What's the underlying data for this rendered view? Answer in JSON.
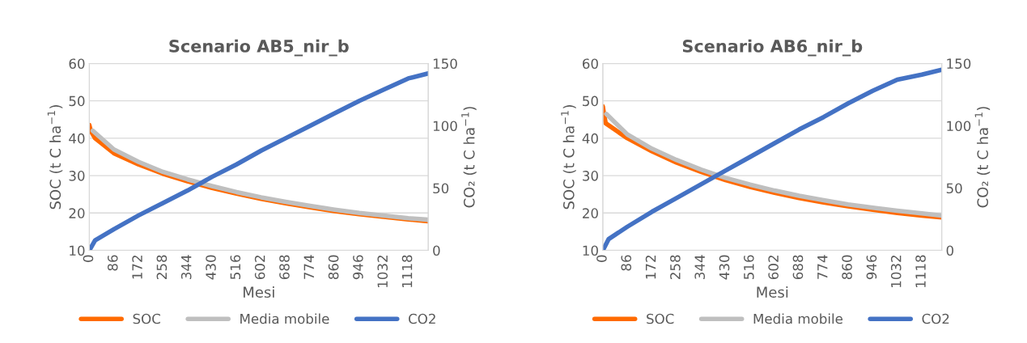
{
  "chart_data": [
    {
      "type": "line",
      "title": "Scenario AB5_nir_b",
      "xlabel": "Mesi",
      "ylabel": "SOC (t C ha$^{−1}$)",
      "y2label": "CO₂ (t C ha$^{−1}$)",
      "xlim": [
        0,
        1188
      ],
      "xticks": [
        0,
        86,
        172,
        258,
        344,
        430,
        516,
        602,
        688,
        774,
        860,
        946,
        1032,
        1118
      ],
      "ylim": [
        10,
        60
      ],
      "yticks": [
        10,
        20,
        30,
        40,
        50,
        60
      ],
      "y2lim": [
        0,
        150
      ],
      "y2ticks": [
        0,
        50,
        100,
        150
      ],
      "grid": "y",
      "legend": "bottom",
      "marker": "none",
      "line_style": "solid",
      "series": [
        {
          "name": "SOC",
          "color": "#ff6a00",
          "x": [
            0,
            5,
            20,
            86,
            172,
            258,
            344,
            430,
            516,
            602,
            688,
            774,
            860,
            946,
            1032,
            1118,
            1188
          ],
          "values": [
            43.5,
            42,
            40,
            36,
            33,
            30.5,
            28.5,
            26.7,
            25.2,
            23.8,
            22.6,
            21.5,
            20.5,
            19.7,
            19,
            18.3,
            17.8
          ]
        },
        {
          "name": "Media mobile",
          "color": "#bfbfbf",
          "x": [
            12,
            86,
            172,
            258,
            344,
            430,
            516,
            602,
            688,
            774,
            860,
            946,
            1032,
            1118,
            1188
          ],
          "values": [
            42,
            37,
            33.7,
            31,
            29,
            27.2,
            25.6,
            24.2,
            23,
            21.9,
            20.9,
            20,
            19.3,
            18.6,
            18.2
          ]
        },
        {
          "name": "CO2",
          "color": "#4472c4",
          "axis": "y2",
          "x": [
            0,
            20,
            86,
            172,
            258,
            344,
            430,
            516,
            602,
            688,
            774,
            860,
            946,
            1032,
            1118,
            1188
          ],
          "values": [
            0,
            8,
            17,
            28,
            38,
            48,
            59,
            69,
            80,
            90,
            100,
            110,
            120,
            129,
            138,
            142
          ]
        }
      ]
    },
    {
      "type": "line",
      "title": "Scenario AB6_nir_b",
      "xlabel": "Mesi",
      "ylabel": "SOC (t C ha$^{−1}$)",
      "y2label": "CO₂ (t C ha$^{−1}$)",
      "xlim": [
        0,
        1188
      ],
      "xticks": [
        0,
        86,
        172,
        258,
        344,
        430,
        516,
        602,
        688,
        774,
        860,
        946,
        1032,
        1118
      ],
      "ylim": [
        10,
        60
      ],
      "yticks": [
        10,
        20,
        30,
        40,
        50,
        60
      ],
      "y2lim": [
        0,
        150
      ],
      "y2ticks": [
        0,
        50,
        100,
        150
      ],
      "grid": "y",
      "legend": "bottom",
      "marker": "none",
      "line_style": "solid",
      "series": [
        {
          "name": "SOC",
          "color": "#ff6a00",
          "x": [
            0,
            5,
            10,
            86,
            172,
            258,
            344,
            430,
            516,
            602,
            688,
            774,
            860,
            946,
            1032,
            1118,
            1188
          ],
          "values": [
            48.5,
            46,
            44,
            40,
            36.5,
            33.5,
            31,
            28.8,
            27,
            25.4,
            24,
            22.8,
            21.8,
            20.9,
            20,
            19.3,
            18.8
          ]
        },
        {
          "name": "Media mobile",
          "color": "#bfbfbf",
          "x": [
            12,
            86,
            172,
            258,
            344,
            430,
            516,
            602,
            688,
            774,
            860,
            946,
            1032,
            1118,
            1188
          ],
          "values": [
            46.5,
            41,
            37.2,
            34.2,
            31.6,
            29.4,
            27.6,
            26,
            24.6,
            23.4,
            22.3,
            21.4,
            20.6,
            19.9,
            19.3
          ]
        },
        {
          "name": "CO2",
          "color": "#4472c4",
          "axis": "y2",
          "x": [
            0,
            20,
            86,
            172,
            258,
            344,
            430,
            516,
            602,
            688,
            774,
            860,
            946,
            1032,
            1118,
            1188
          ],
          "values": [
            0,
            9,
            19,
            31,
            42,
            53,
            64,
            75,
            86,
            97,
            107,
            118,
            128,
            137,
            141,
            145
          ]
        }
      ]
    }
  ]
}
